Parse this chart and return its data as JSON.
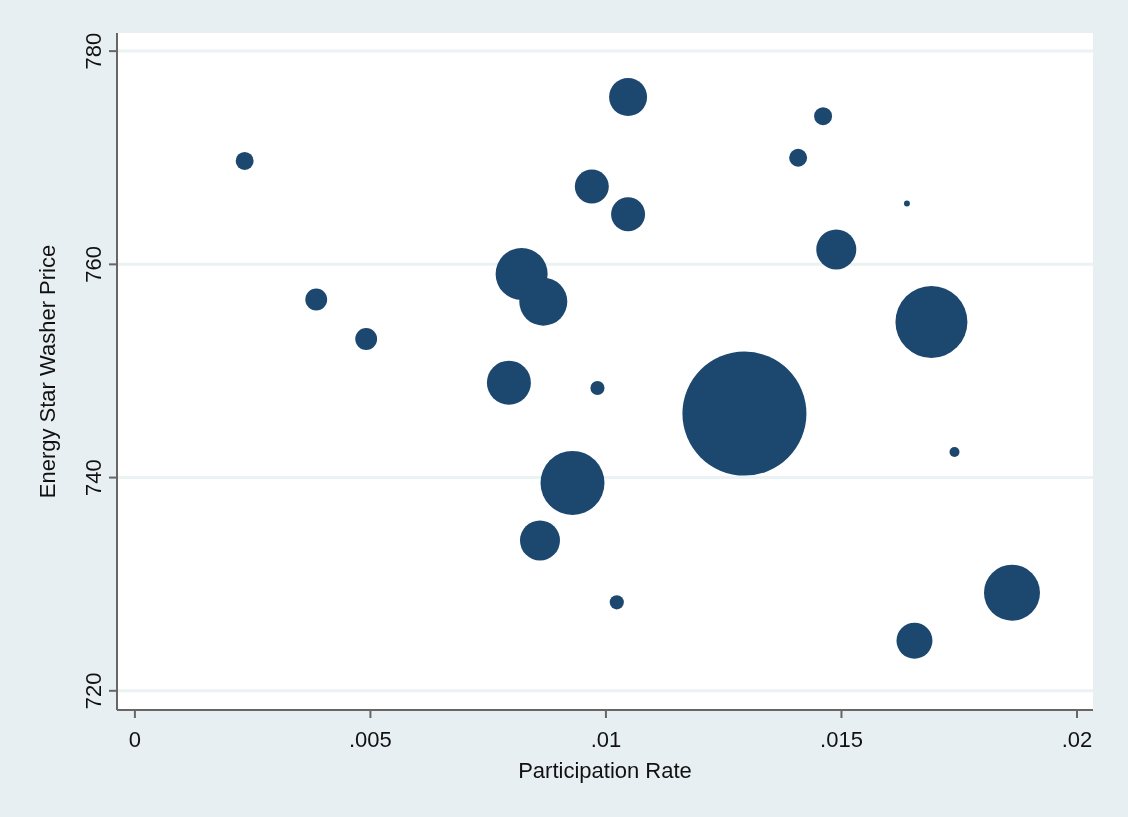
{
  "chart_data": {
    "type": "bubble",
    "xlabel": "Participation Rate",
    "ylabel": "Energy Star Washer Price",
    "xlim": [
      -0.00038,
      0.02034
    ],
    "ylim": [
      718.2,
      781.7
    ],
    "xticks": [
      0,
      {
        "value": 0.005,
        "label": ".005"
      },
      {
        "value": 0.01,
        "label": ".01"
      },
      {
        "value": 0.015,
        "label": ".015"
      },
      {
        "value": 0.02,
        "label": ".02"
      }
    ],
    "yticks": [
      720,
      740,
      760,
      780
    ],
    "grid": "y",
    "series": [
      {
        "color": "#1c476f",
        "x": [
          0.00233,
          0.00385,
          0.00491,
          0.00794,
          0.00821,
          0.00867,
          0.0086,
          0.00929,
          0.0097,
          0.00982,
          0.01023,
          0.01047,
          0.01047,
          0.01294,
          0.01408,
          0.01461,
          0.01489,
          0.01639,
          0.01691,
          0.0174,
          0.01655,
          0.01862
        ],
        "values": [
          769.7,
          756.7,
          753.0,
          748.9,
          759.1,
          756.5,
          734.1,
          739.5,
          767.3,
          748.4,
          728.3,
          775.7,
          764.7,
          746.0,
          770.0,
          773.9,
          761.4,
          765.7,
          754.6,
          742.4,
          724.7,
          729.2
        ],
        "sizes": [
          0.021,
          0.031,
          0.031,
          0.126,
          0.176,
          0.15,
          0.104,
          0.266,
          0.075,
          0.013,
          0.013,
          0.094,
          0.075,
          1,
          0.021,
          0.021,
          0.104,
          0.0023,
          0.337,
          0.0065,
          0.084,
          0.204
        ]
      }
    ]
  }
}
